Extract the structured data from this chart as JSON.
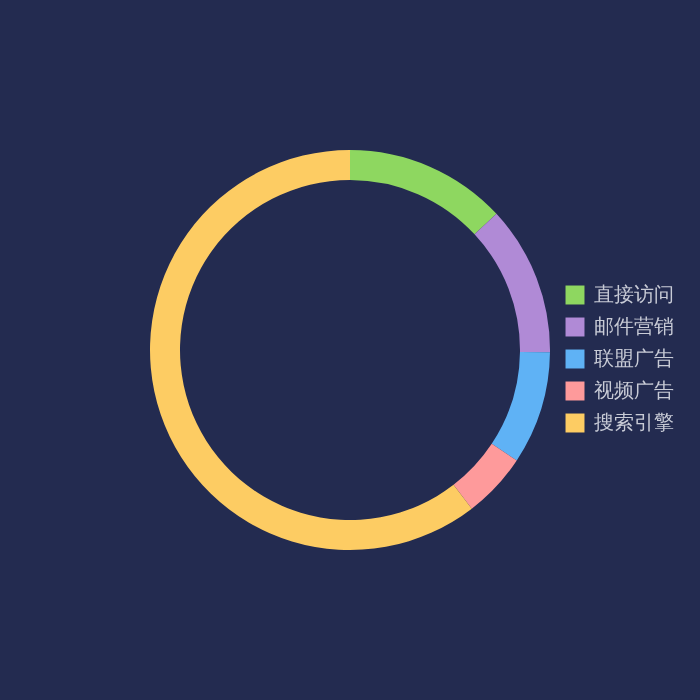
{
  "chart_data": {
    "type": "donut",
    "categories": [
      "直接访问",
      "邮件营销",
      "联盟广告",
      "视频广告",
      "搜索引擎"
    ],
    "values": [
      13.08,
      12.1,
      9.13,
      5.27,
      60.42
    ],
    "colors": [
      "#8ed760",
      "#b08ad6",
      "#5fb2f5",
      "#fe9a9b",
      "#fdcc63"
    ],
    "legend": "right"
  }
}
